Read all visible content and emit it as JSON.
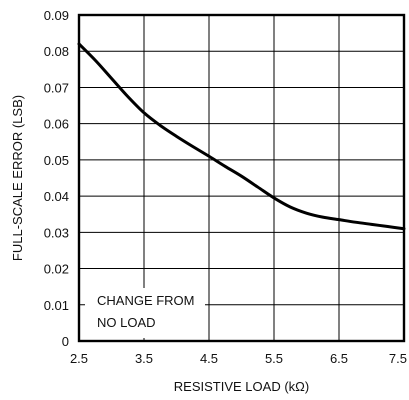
{
  "chart_data": {
    "type": "line",
    "title": "",
    "xlabel": "RESISTIVE LOAD (kΩ)",
    "ylabel": "FULL-SCALE ERROR (LSB)",
    "xlim": [
      2.5,
      7.5
    ],
    "ylim": [
      0,
      0.09
    ],
    "grid": true,
    "x_ticks": [
      2.5,
      3.5,
      4.5,
      5.5,
      6.5,
      7.5
    ],
    "x_tick_labels": [
      "2.5",
      "3.5",
      "4.5",
      "5.5",
      "6.5",
      "7.5"
    ],
    "y_ticks": [
      0,
      0.01,
      0.02,
      0.03,
      0.04,
      0.05,
      0.06,
      0.07,
      0.08,
      0.09
    ],
    "y_tick_labels": [
      "0",
      "0.01",
      "0.02",
      "0.03",
      "0.04",
      "0.05",
      "0.06",
      "0.07",
      "0.08",
      "0.09"
    ],
    "annotation": [
      "CHANGE FROM",
      "NO LOAD"
    ],
    "series": [
      {
        "x": [
          2.5,
          2.75,
          3.0,
          3.25,
          3.5,
          3.75,
          4.0,
          4.25,
          4.5,
          4.75,
          5.0,
          5.25,
          5.5,
          5.75,
          6.0,
          6.25,
          6.5,
          6.75,
          7.0,
          7.25,
          7.5
        ],
        "y": [
          0.082,
          0.0775,
          0.0725,
          0.0675,
          0.063,
          0.0595,
          0.0565,
          0.0537,
          0.051,
          0.0482,
          0.0455,
          0.0425,
          0.0395,
          0.037,
          0.0353,
          0.0342,
          0.0335,
          0.0328,
          0.0322,
          0.0316,
          0.031
        ],
        "color": "#000000"
      }
    ]
  }
}
